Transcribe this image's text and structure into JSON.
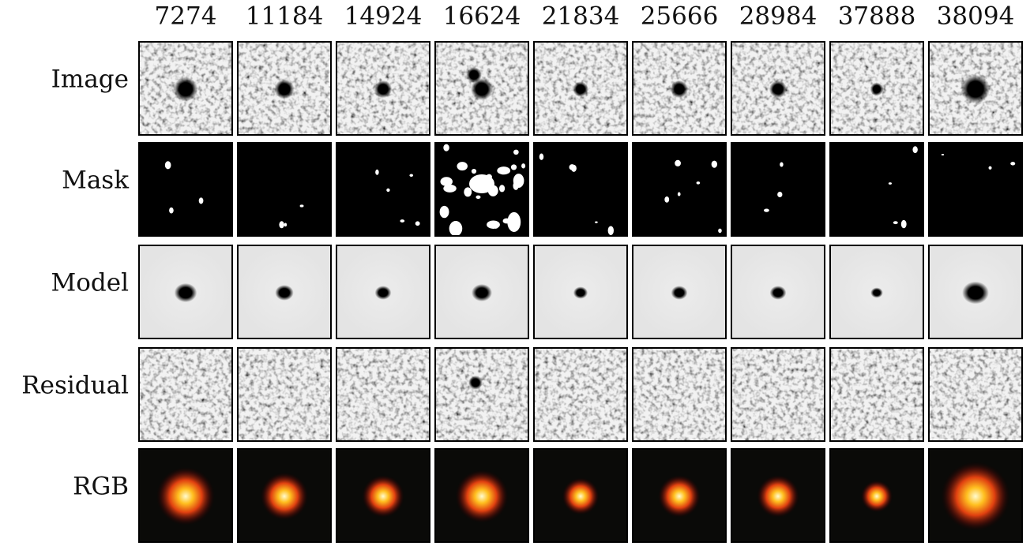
{
  "columns": [
    "7274",
    "11184",
    "14924",
    "16624",
    "21834",
    "25666",
    "28984",
    "37888",
    "38094"
  ],
  "rows": [
    "Image",
    "Mask",
    "Model",
    "Residual",
    "RGB"
  ]
}
